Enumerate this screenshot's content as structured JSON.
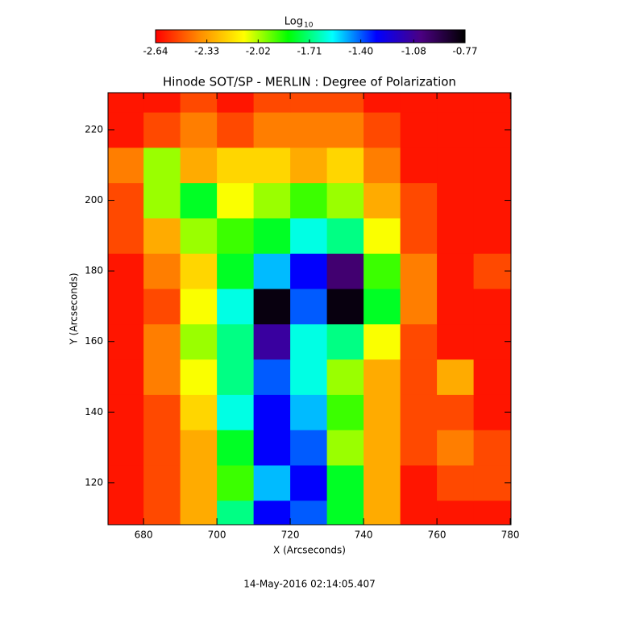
{
  "chart_data": {
    "type": "heatmap",
    "title": "Hinode SOT/SP - MERLIN : Degree of Polarization",
    "x_label": "X (Arcseconds)",
    "y_label": "Y (Arcseconds)",
    "footer": "14-May-2016 02:14:05.407",
    "colorbar_title": "Log",
    "colorbar_title_subscript": "10",
    "clim": [
      -2.64,
      -0.77
    ],
    "colorbar_ticks": [
      {
        "value": -2.64,
        "label": "-2.64"
      },
      {
        "value": -2.33,
        "label": "-2.33"
      },
      {
        "value": -2.02,
        "label": "-2.02"
      },
      {
        "value": -1.71,
        "label": "-1.71"
      },
      {
        "value": -1.4,
        "label": "-1.40"
      },
      {
        "value": -1.08,
        "label": "-1.08"
      },
      {
        "value": -0.77,
        "label": "-0.77"
      }
    ],
    "colormap": [
      "#ff0000",
      "#ff8c00",
      "#ffff00",
      "#00ff00",
      "#00ffff",
      "#0000ff",
      "#4b0082",
      "#000000"
    ],
    "xlim": [
      670.3,
      780.2
    ],
    "ylim": [
      108.1,
      230.5
    ],
    "xticks": [
      680,
      700,
      720,
      740,
      760,
      780
    ],
    "yticks": [
      120,
      140,
      160,
      180,
      200,
      220
    ],
    "xbins": [
      670,
      680,
      690,
      700,
      710,
      720,
      730,
      740,
      750,
      760,
      770,
      780
    ],
    "ybins": [
      105,
      115,
      125,
      135,
      145,
      155,
      165,
      175,
      185,
      195,
      205,
      215,
      225,
      235
    ],
    "z": [
      [
        -2.6,
        -2.5,
        -2.3,
        -1.7,
        -1.3,
        -1.4,
        -1.8,
        -2.3,
        -2.6,
        -2.6,
        -2.6
      ],
      [
        -2.6,
        -2.5,
        -2.3,
        -1.9,
        -1.5,
        -1.3,
        -1.8,
        -2.3,
        -2.6,
        -2.5,
        -2.5
      ],
      [
        -2.6,
        -2.5,
        -2.3,
        -1.8,
        -1.3,
        -1.4,
        -2.0,
        -2.3,
        -2.5,
        -2.4,
        -2.5
      ],
      [
        -2.6,
        -2.5,
        -2.2,
        -1.6,
        -1.3,
        -1.5,
        -1.9,
        -2.3,
        -2.5,
        -2.5,
        -2.6
      ],
      [
        -2.6,
        -2.4,
        -2.1,
        -1.7,
        -1.4,
        -1.6,
        -2.0,
        -2.3,
        -2.5,
        -2.3,
        -2.6
      ],
      [
        -2.6,
        -2.4,
        -2.0,
        -1.7,
        -1.1,
        -1.6,
        -1.7,
        -2.1,
        -2.5,
        -2.6,
        -2.6
      ],
      [
        -2.6,
        -2.5,
        -2.1,
        -1.6,
        -0.8,
        -1.4,
        -0.8,
        -1.8,
        -2.4,
        -2.6,
        -2.6
      ],
      [
        -2.6,
        -2.4,
        -2.2,
        -1.8,
        -1.5,
        -1.3,
        -1.0,
        -1.9,
        -2.4,
        -2.6,
        -2.5
      ],
      [
        -2.5,
        -2.3,
        -2.0,
        -1.9,
        -1.8,
        -1.6,
        -1.7,
        -2.1,
        -2.5,
        -2.6,
        -2.6
      ],
      [
        -2.5,
        -2.0,
        -1.8,
        -2.1,
        -2.0,
        -1.9,
        -2.0,
        -2.3,
        -2.5,
        -2.6,
        -2.6
      ],
      [
        -2.4,
        -2.0,
        -2.3,
        -2.2,
        -2.2,
        -2.3,
        -2.2,
        -2.4,
        -2.6,
        -2.6,
        -2.6
      ],
      [
        -2.6,
        -2.5,
        -2.4,
        -2.5,
        -2.4,
        -2.4,
        -2.4,
        -2.5,
        -2.6,
        -2.6,
        -2.6
      ],
      [
        -2.6,
        -2.6,
        -2.5,
        -2.6,
        -2.5,
        -2.5,
        -2.5,
        -2.6,
        -2.6,
        -2.6,
        -2.6
      ]
    ]
  }
}
